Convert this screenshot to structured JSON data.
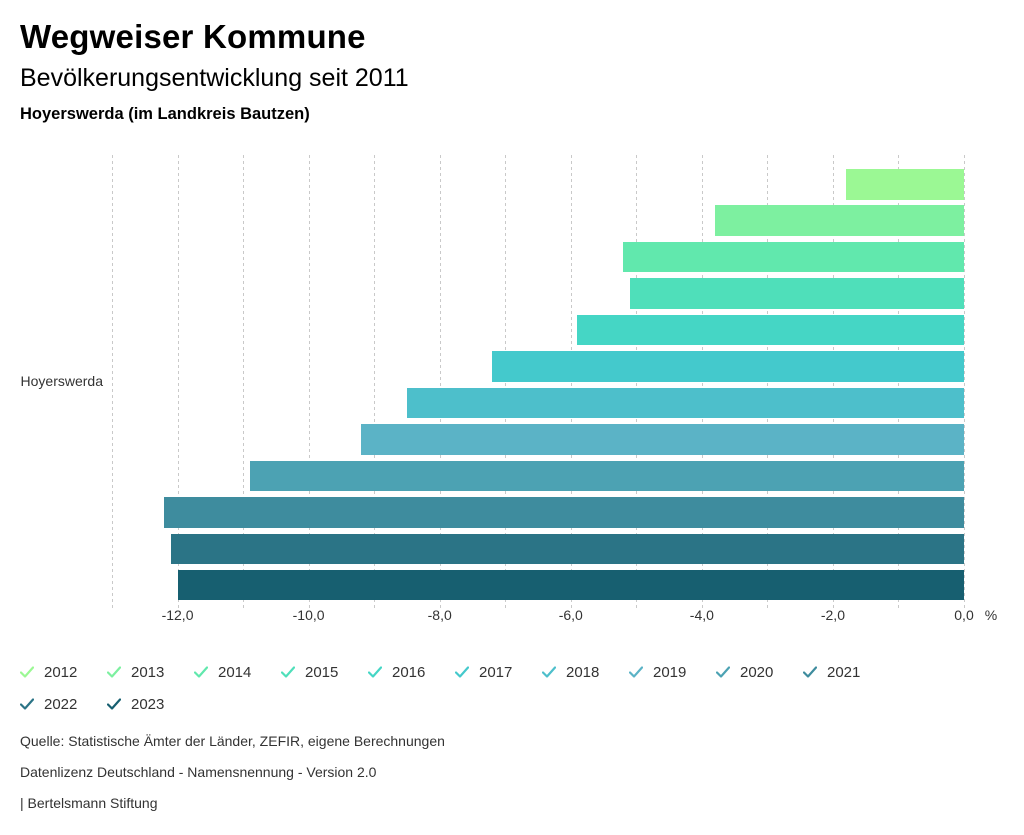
{
  "header": {
    "title": "Wegweiser Kommune",
    "subtitle": "Bevölkerungsentwicklung seit 2011",
    "location": "Hoyerswerda (im Landkreis Bautzen)"
  },
  "chart_data": {
    "type": "bar",
    "orientation": "horizontal",
    "title": "Bevölkerungsentwicklung seit 2011",
    "category_label": "Hoyerswerda",
    "unit_label": "%",
    "xlim": [
      -13,
      0
    ],
    "grid": true,
    "grid_step": 1,
    "legend_position": "bottom",
    "series": [
      {
        "name": "2012",
        "value": -1.8,
        "color": "#9BF894"
      },
      {
        "name": "2013",
        "value": -3.8,
        "color": "#7DF0A0"
      },
      {
        "name": "2014",
        "value": -5.2,
        "color": "#61E8AD"
      },
      {
        "name": "2015",
        "value": -5.1,
        "color": "#4FDFBA"
      },
      {
        "name": "2016",
        "value": -5.9,
        "color": "#45D6C5"
      },
      {
        "name": "2017",
        "value": -7.2,
        "color": "#44C9CC"
      },
      {
        "name": "2018",
        "value": -8.5,
        "color": "#4DBFCB"
      },
      {
        "name": "2019",
        "value": -9.2,
        "color": "#5BB3C6"
      },
      {
        "name": "2020",
        "value": -10.9,
        "color": "#4CA2B3"
      },
      {
        "name": "2021",
        "value": -12.2,
        "color": "#3E8C9E"
      },
      {
        "name": "2022",
        "value": -12.1,
        "color": "#2B7486"
      },
      {
        "name": "2023",
        "value": -12.0,
        "color": "#175F70"
      }
    ],
    "tick_values": [
      -12,
      -10,
      -8,
      -6,
      -4,
      -2,
      0
    ],
    "tick_labels": [
      "-12,0",
      "-10,0",
      "-8,0",
      "-6,0",
      "-4,0",
      "-2,0",
      "0,0"
    ]
  },
  "footer": {
    "source": "Quelle: Statistische Ämter der Länder, ZEFIR, eigene Berechnungen",
    "license": "Datenlizenz Deutschland - Namensnennung - Version 2.0",
    "attribution": "| Bertelsmann Stiftung"
  }
}
